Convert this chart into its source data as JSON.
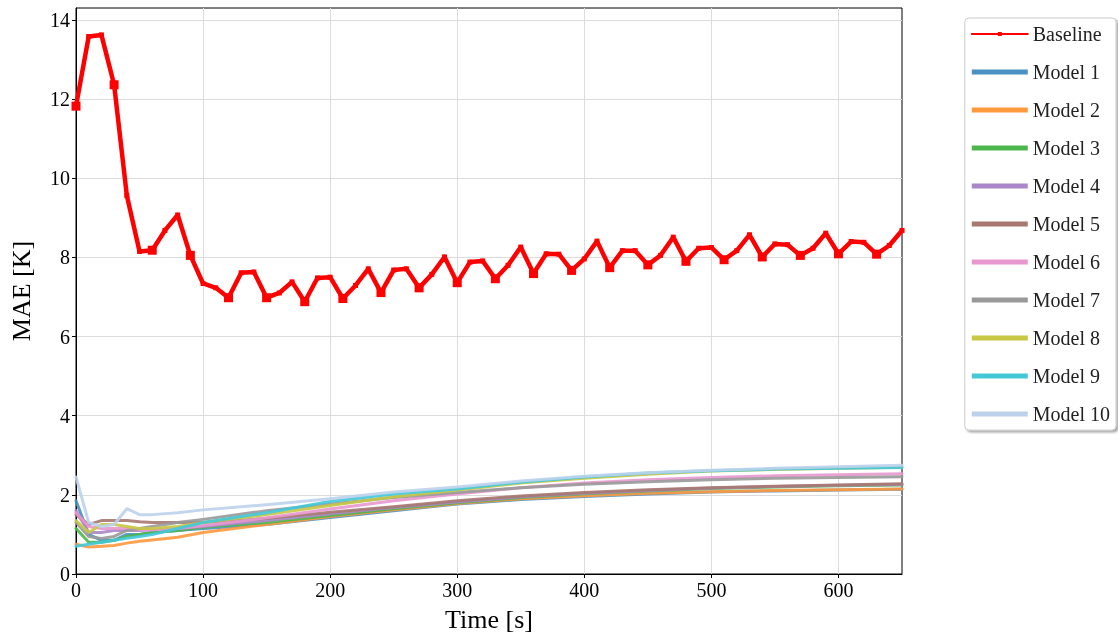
{
  "chart_data": {
    "type": "line",
    "xlabel": "Time [s]",
    "ylabel": "MAE [K]",
    "xlim": [
      0,
      650
    ],
    "xticks": [
      0,
      100,
      200,
      300,
      400,
      500,
      600
    ],
    "ylim": [
      0,
      14.3
    ],
    "yticks": [
      0,
      2,
      4,
      6,
      8,
      10,
      12,
      14
    ],
    "grid": true,
    "legend": "right",
    "line_style": "solid",
    "marker": "none",
    "series": [
      {
        "name": "Baseline",
        "color": "#ff0000",
        "marker": "square",
        "x": [
          0,
          10,
          20,
          30,
          40,
          50,
          60,
          70,
          80,
          90,
          100,
          110,
          120,
          130,
          140,
          150,
          160,
          170,
          180,
          190,
          200,
          210,
          220,
          230,
          240,
          250,
          260,
          270,
          280,
          290,
          300,
          310,
          320,
          330,
          340,
          350,
          360,
          370,
          380,
          390,
          400,
          410,
          420,
          430,
          440,
          450,
          460,
          470,
          480,
          490,
          500,
          510,
          520,
          530,
          540,
          550,
          560,
          570,
          580,
          590,
          600,
          610,
          620,
          630,
          640,
          650
        ],
        "values": [
          11.82,
          13.58,
          13.62,
          12.36,
          9.56,
          8.15,
          8.18,
          8.68,
          9.07,
          8.05,
          7.34,
          7.23,
          6.98,
          7.61,
          7.63,
          6.98,
          7.1,
          7.38,
          6.88,
          7.48,
          7.5,
          6.96,
          7.29,
          7.71,
          7.11,
          7.68,
          7.71,
          7.23,
          7.57,
          8.01,
          7.36,
          7.88,
          7.91,
          7.46,
          7.8,
          8.26,
          7.59,
          8.09,
          8.08,
          7.67,
          7.96,
          8.41,
          7.74,
          8.17,
          8.17,
          7.81,
          8.05,
          8.51,
          7.9,
          8.23,
          8.25,
          7.94,
          8.17,
          8.57,
          8.01,
          8.34,
          8.32,
          8.05,
          8.23,
          8.61,
          8.09,
          8.4,
          8.38,
          8.08,
          8.3,
          8.68
        ]
      },
      {
        "name": "Model 1",
        "color": "#4a90c2",
        "x": [
          0,
          10,
          20,
          30,
          40,
          50,
          60,
          80,
          100,
          150,
          200,
          250,
          300,
          350,
          400,
          450,
          500,
          550,
          600,
          650
        ],
        "values": [
          1.85,
          1.0,
          0.85,
          0.85,
          1.0,
          1.0,
          1.05,
          1.1,
          1.15,
          1.25,
          1.43,
          1.6,
          1.77,
          1.88,
          1.96,
          2.02,
          2.07,
          2.1,
          2.12,
          2.14
        ]
      },
      {
        "name": "Model 2",
        "color": "#ff993e",
        "x": [
          0,
          10,
          20,
          30,
          40,
          50,
          60,
          80,
          100,
          150,
          200,
          250,
          300,
          350,
          400,
          450,
          500,
          550,
          600,
          650
        ],
        "values": [
          0.75,
          0.68,
          0.7,
          0.72,
          0.78,
          0.83,
          0.86,
          0.93,
          1.05,
          1.25,
          1.45,
          1.62,
          1.78,
          1.9,
          1.98,
          2.04,
          2.08,
          2.11,
          2.13,
          2.15
        ]
      },
      {
        "name": "Model 3",
        "color": "#4db74d",
        "x": [
          0,
          10,
          20,
          30,
          40,
          50,
          60,
          80,
          100,
          150,
          200,
          250,
          300,
          350,
          400,
          450,
          500,
          550,
          600,
          650
        ],
        "values": [
          1.15,
          0.8,
          0.8,
          0.85,
          0.95,
          1.0,
          1.05,
          1.1,
          1.18,
          1.3,
          1.48,
          1.65,
          1.8,
          1.93,
          2.03,
          2.1,
          2.16,
          2.2,
          2.23,
          2.25
        ]
      },
      {
        "name": "Model 4",
        "color": "#a987c9",
        "x": [
          0,
          10,
          20,
          30,
          40,
          50,
          60,
          80,
          100,
          150,
          200,
          250,
          300,
          350,
          400,
          450,
          500,
          550,
          600,
          650
        ],
        "values": [
          1.6,
          1.05,
          1.05,
          1.1,
          1.1,
          1.1,
          1.12,
          1.15,
          1.2,
          1.35,
          1.52,
          1.68,
          1.82,
          1.95,
          2.04,
          2.11,
          2.17,
          2.21,
          2.24,
          2.26
        ]
      },
      {
        "name": "Model 5",
        "color": "#a7786f",
        "x": [
          0,
          10,
          20,
          30,
          40,
          50,
          60,
          80,
          100,
          150,
          200,
          250,
          300,
          350,
          400,
          450,
          500,
          550,
          600,
          650
        ],
        "values": [
          1.5,
          1.25,
          1.35,
          1.35,
          1.35,
          1.32,
          1.3,
          1.3,
          1.3,
          1.4,
          1.56,
          1.7,
          1.85,
          1.97,
          2.06,
          2.13,
          2.18,
          2.22,
          2.25,
          2.28
        ]
      },
      {
        "name": "Model 6",
        "color": "#e897cf",
        "x": [
          0,
          10,
          20,
          30,
          40,
          50,
          60,
          80,
          100,
          150,
          200,
          250,
          300,
          350,
          400,
          450,
          500,
          550,
          600,
          650
        ],
        "values": [
          1.55,
          1.2,
          1.15,
          1.15,
          1.15,
          1.12,
          1.12,
          1.15,
          1.22,
          1.42,
          1.64,
          1.85,
          2.02,
          2.18,
          2.3,
          2.38,
          2.44,
          2.48,
          2.51,
          2.53
        ]
      },
      {
        "name": "Model 7",
        "color": "#999999",
        "x": [
          0,
          10,
          20,
          30,
          40,
          50,
          60,
          80,
          100,
          150,
          200,
          250,
          300,
          350,
          400,
          450,
          500,
          550,
          600,
          650
        ],
        "values": [
          1.3,
          0.95,
          0.9,
          0.95,
          1.1,
          1.15,
          1.2,
          1.3,
          1.38,
          1.6,
          1.77,
          1.93,
          2.06,
          2.18,
          2.27,
          2.33,
          2.38,
          2.42,
          2.44,
          2.46
        ]
      },
      {
        "name": "Model 8",
        "color": "#c8c844",
        "x": [
          0,
          10,
          20,
          30,
          40,
          50,
          60,
          80,
          100,
          150,
          200,
          250,
          300,
          350,
          400,
          450,
          500,
          550,
          600,
          650
        ],
        "values": [
          1.35,
          1.05,
          1.25,
          1.25,
          1.2,
          1.15,
          1.15,
          1.2,
          1.3,
          1.5,
          1.73,
          1.95,
          2.12,
          2.3,
          2.42,
          2.52,
          2.6,
          2.64,
          2.67,
          2.7
        ]
      },
      {
        "name": "Model 9",
        "color": "#44c8d8",
        "x": [
          0,
          10,
          20,
          30,
          40,
          50,
          60,
          80,
          100,
          150,
          200,
          250,
          300,
          350,
          400,
          450,
          500,
          550,
          600,
          650
        ],
        "values": [
          0.7,
          0.75,
          0.8,
          0.85,
          0.9,
          0.95,
          1.0,
          1.15,
          1.3,
          1.55,
          1.83,
          2.02,
          2.15,
          2.32,
          2.45,
          2.55,
          2.61,
          2.65,
          2.67,
          2.69
        ]
      },
      {
        "name": "Model 10",
        "color": "#bdd1ec",
        "x": [
          0,
          10,
          20,
          30,
          40,
          50,
          60,
          80,
          100,
          150,
          200,
          250,
          300,
          350,
          400,
          450,
          500,
          550,
          600,
          650
        ],
        "values": [
          2.45,
          1.3,
          1.2,
          1.25,
          1.65,
          1.5,
          1.5,
          1.55,
          1.62,
          1.75,
          1.9,
          2.07,
          2.2,
          2.35,
          2.47,
          2.56,
          2.62,
          2.67,
          2.71,
          2.75
        ]
      }
    ]
  }
}
